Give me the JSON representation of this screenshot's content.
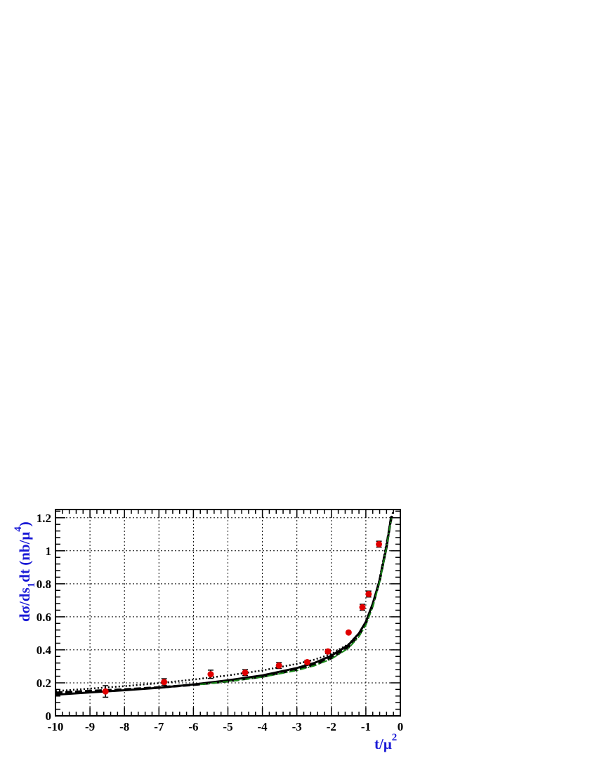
{
  "chart_data": {
    "type": "scatter",
    "title": "",
    "xlabel": "t/μ²",
    "xlabel_parts": {
      "base": "t/μ",
      "sup": "2"
    },
    "ylabel": "dσ/ds₁dt (nb/μ⁴)",
    "ylabel_parts": {
      "a": "dσ/ds",
      "sub": "1",
      "b": "dt (nb/μ",
      "sup": "4",
      "c": ")"
    },
    "xlim": [
      -10,
      0
    ],
    "ylim": [
      0,
      1.25
    ],
    "grid": true,
    "x_ticks": [
      -10,
      -9,
      -8,
      -7,
      -6,
      -5,
      -4,
      -3,
      -2,
      -1,
      0
    ],
    "x_tick_labels": [
      "-10",
      "-9",
      "-8",
      "-7",
      "-6",
      "-5",
      "-4",
      "-3",
      "-2",
      "-1",
      "0"
    ],
    "y_ticks": [
      0,
      0.2,
      0.4,
      0.6,
      0.8,
      1.0,
      1.2
    ],
    "y_tick_labels": [
      "0",
      "0.2",
      "0.4",
      "0.6",
      "0.8",
      "1",
      "1.2"
    ],
    "series": [
      {
        "style": "markers-with-error-bars",
        "color": "#e00000",
        "points": [
          {
            "x": -8.55,
            "y": 0.148,
            "err": 0.035
          },
          {
            "x": -6.85,
            "y": 0.205,
            "err": 0.02
          },
          {
            "x": -5.5,
            "y": 0.252,
            "err": 0.025
          },
          {
            "x": -4.5,
            "y": 0.262,
            "err": 0.018
          },
          {
            "x": -3.52,
            "y": 0.305,
            "err": 0.018
          },
          {
            "x": -2.7,
            "y": 0.325,
            "err": 0.012
          },
          {
            "x": -2.1,
            "y": 0.39,
            "err": 0.012
          },
          {
            "x": -1.5,
            "y": 0.505,
            "err": 0.0
          },
          {
            "x": -1.1,
            "y": 0.658,
            "err": 0.018
          },
          {
            "x": -0.92,
            "y": 0.738,
            "err": 0.018
          },
          {
            "x": -0.62,
            "y": 1.04,
            "err": 0.018
          }
        ]
      },
      {
        "style": "solid",
        "color": "#000000",
        "points": [
          {
            "x": -10,
            "y": 0.128
          },
          {
            "x": -9,
            "y": 0.142
          },
          {
            "x": -8,
            "y": 0.155
          },
          {
            "x": -7,
            "y": 0.17
          },
          {
            "x": -6,
            "y": 0.19
          },
          {
            "x": -5,
            "y": 0.215
          },
          {
            "x": -4,
            "y": 0.245
          },
          {
            "x": -3,
            "y": 0.29
          },
          {
            "x": -2.5,
            "y": 0.32
          },
          {
            "x": -2,
            "y": 0.365
          },
          {
            "x": -1.5,
            "y": 0.43
          },
          {
            "x": -1.2,
            "y": 0.5
          },
          {
            "x": -1,
            "y": 0.57
          },
          {
            "x": -0.8,
            "y": 0.68
          },
          {
            "x": -0.6,
            "y": 0.82
          },
          {
            "x": -0.4,
            "y": 1.02
          },
          {
            "x": -0.28,
            "y": 1.19
          }
        ]
      },
      {
        "style": "dashed",
        "color": "#000000",
        "points": [
          {
            "x": -10,
            "y": 0.14
          },
          {
            "x": -9,
            "y": 0.15
          },
          {
            "x": -8,
            "y": 0.16
          },
          {
            "x": -7,
            "y": 0.172
          },
          {
            "x": -6,
            "y": 0.188
          },
          {
            "x": -5,
            "y": 0.21
          },
          {
            "x": -4,
            "y": 0.238
          },
          {
            "x": -3,
            "y": 0.28
          },
          {
            "x": -2.5,
            "y": 0.308
          },
          {
            "x": -2,
            "y": 0.35
          },
          {
            "x": -1.5,
            "y": 0.418
          },
          {
            "x": -1.2,
            "y": 0.49
          },
          {
            "x": -1,
            "y": 0.56
          },
          {
            "x": -0.8,
            "y": 0.67
          },
          {
            "x": -0.6,
            "y": 0.82
          },
          {
            "x": -0.4,
            "y": 1.03
          },
          {
            "x": -0.25,
            "y": 1.22
          }
        ]
      },
      {
        "style": "dotted",
        "color": "#000000",
        "points": [
          {
            "x": -10,
            "y": 0.15
          },
          {
            "x": -9,
            "y": 0.165
          },
          {
            "x": -8,
            "y": 0.18
          },
          {
            "x": -7,
            "y": 0.198
          },
          {
            "x": -6,
            "y": 0.22
          },
          {
            "x": -5,
            "y": 0.245
          },
          {
            "x": -4,
            "y": 0.275
          },
          {
            "x": -3,
            "y": 0.315
          },
          {
            "x": -2.5,
            "y": 0.34
          },
          {
            "x": -2,
            "y": 0.375
          },
          {
            "x": -1.5,
            "y": 0.435
          },
          {
            "x": -1.2,
            "y": 0.5
          },
          {
            "x": -1,
            "y": 0.565
          },
          {
            "x": -0.8,
            "y": 0.675
          },
          {
            "x": -0.6,
            "y": 0.83
          },
          {
            "x": -0.4,
            "y": 1.05
          },
          {
            "x": -0.2,
            "y": 1.25
          }
        ]
      },
      {
        "style": "dash-dot",
        "color": "#1a8a1a",
        "points": [
          {
            "x": -5.8,
            "y": 0.19
          },
          {
            "x": -5,
            "y": 0.208
          },
          {
            "x": -4,
            "y": 0.235
          },
          {
            "x": -3,
            "y": 0.275
          },
          {
            "x": -2.5,
            "y": 0.303
          },
          {
            "x": -2,
            "y": 0.345
          },
          {
            "x": -1.5,
            "y": 0.41
          },
          {
            "x": -1.2,
            "y": 0.48
          },
          {
            "x": -1,
            "y": 0.55
          },
          {
            "x": -0.8,
            "y": 0.66
          },
          {
            "x": -0.6,
            "y": 0.81
          },
          {
            "x": -0.4,
            "y": 1.02
          },
          {
            "x": -0.26,
            "y": 1.2
          }
        ]
      }
    ]
  }
}
